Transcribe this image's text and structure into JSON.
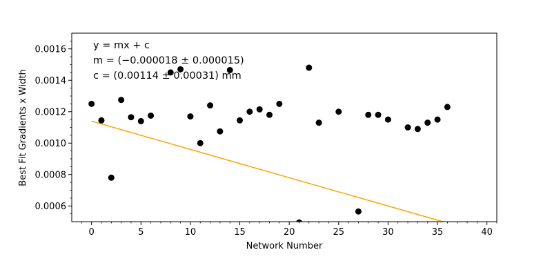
{
  "chart_data": {
    "type": "scatter",
    "title": "",
    "xlabel": "Network Number",
    "ylabel": "Best Fit Gradients x Width",
    "xlim": [
      -2,
      41
    ],
    "ylim": [
      0.0005,
      0.0017
    ],
    "x_ticks": [
      0,
      5,
      10,
      15,
      20,
      25,
      30,
      35,
      40
    ],
    "x_tick_labels": [
      "0",
      "5",
      "10",
      "15",
      "20",
      "25",
      "30",
      "35",
      "40"
    ],
    "y_ticks": [
      0.0006,
      0.0008,
      0.001,
      0.0012,
      0.0014,
      0.0016
    ],
    "y_tick_labels": [
      "0.0006",
      "0.0008",
      "0.0010",
      "0.0012",
      "0.0014",
      "0.0016"
    ],
    "grid": false,
    "legend": "none",
    "annotations": [
      "y = mx + c",
      "m = (−0.000018 ± 0.000015)",
      "c = (0.00114 ± 0.00031) mm"
    ],
    "series": [
      {
        "type": "scatter",
        "color": "#000000",
        "points": [
          {
            "x": 0,
            "y": 0.00125
          },
          {
            "x": 1,
            "y": 0.001145
          },
          {
            "x": 2,
            "y": 0.00078
          },
          {
            "x": 3,
            "y": 0.001275
          },
          {
            "x": 4,
            "y": 0.001165
          },
          {
            "x": 5,
            "y": 0.00114
          },
          {
            "x": 6,
            "y": 0.001175
          },
          {
            "x": 8,
            "y": 0.00145
          },
          {
            "x": 9,
            "y": 0.00147
          },
          {
            "x": 10,
            "y": 0.00117
          },
          {
            "x": 11,
            "y": 0.001
          },
          {
            "x": 12,
            "y": 0.00124
          },
          {
            "x": 13,
            "y": 0.001075
          },
          {
            "x": 14,
            "y": 0.001465
          },
          {
            "x": 15,
            "y": 0.001145
          },
          {
            "x": 16,
            "y": 0.0012
          },
          {
            "x": 17,
            "y": 0.001215
          },
          {
            "x": 18,
            "y": 0.00118
          },
          {
            "x": 19,
            "y": 0.00125
          },
          {
            "x": 21,
            "y": 0.000495
          },
          {
            "x": 22,
            "y": 0.00148
          },
          {
            "x": 23,
            "y": 0.00113
          },
          {
            "x": 25,
            "y": 0.0012
          },
          {
            "x": 27,
            "y": 0.000565
          },
          {
            "x": 28,
            "y": 0.00118
          },
          {
            "x": 29,
            "y": 0.00118
          },
          {
            "x": 30,
            "y": 0.00115
          },
          {
            "x": 32,
            "y": 0.0011
          },
          {
            "x": 33,
            "y": 0.00109
          },
          {
            "x": 34,
            "y": 0.00113
          },
          {
            "x": 35,
            "y": 0.00115
          },
          {
            "x": 36,
            "y": 0.00123
          }
        ]
      },
      {
        "type": "line",
        "color": "#ffa500",
        "points": [
          {
            "x": 0,
            "y": 0.00114
          },
          {
            "x": 35.8,
            "y": 0.0004956
          }
        ]
      }
    ]
  }
}
